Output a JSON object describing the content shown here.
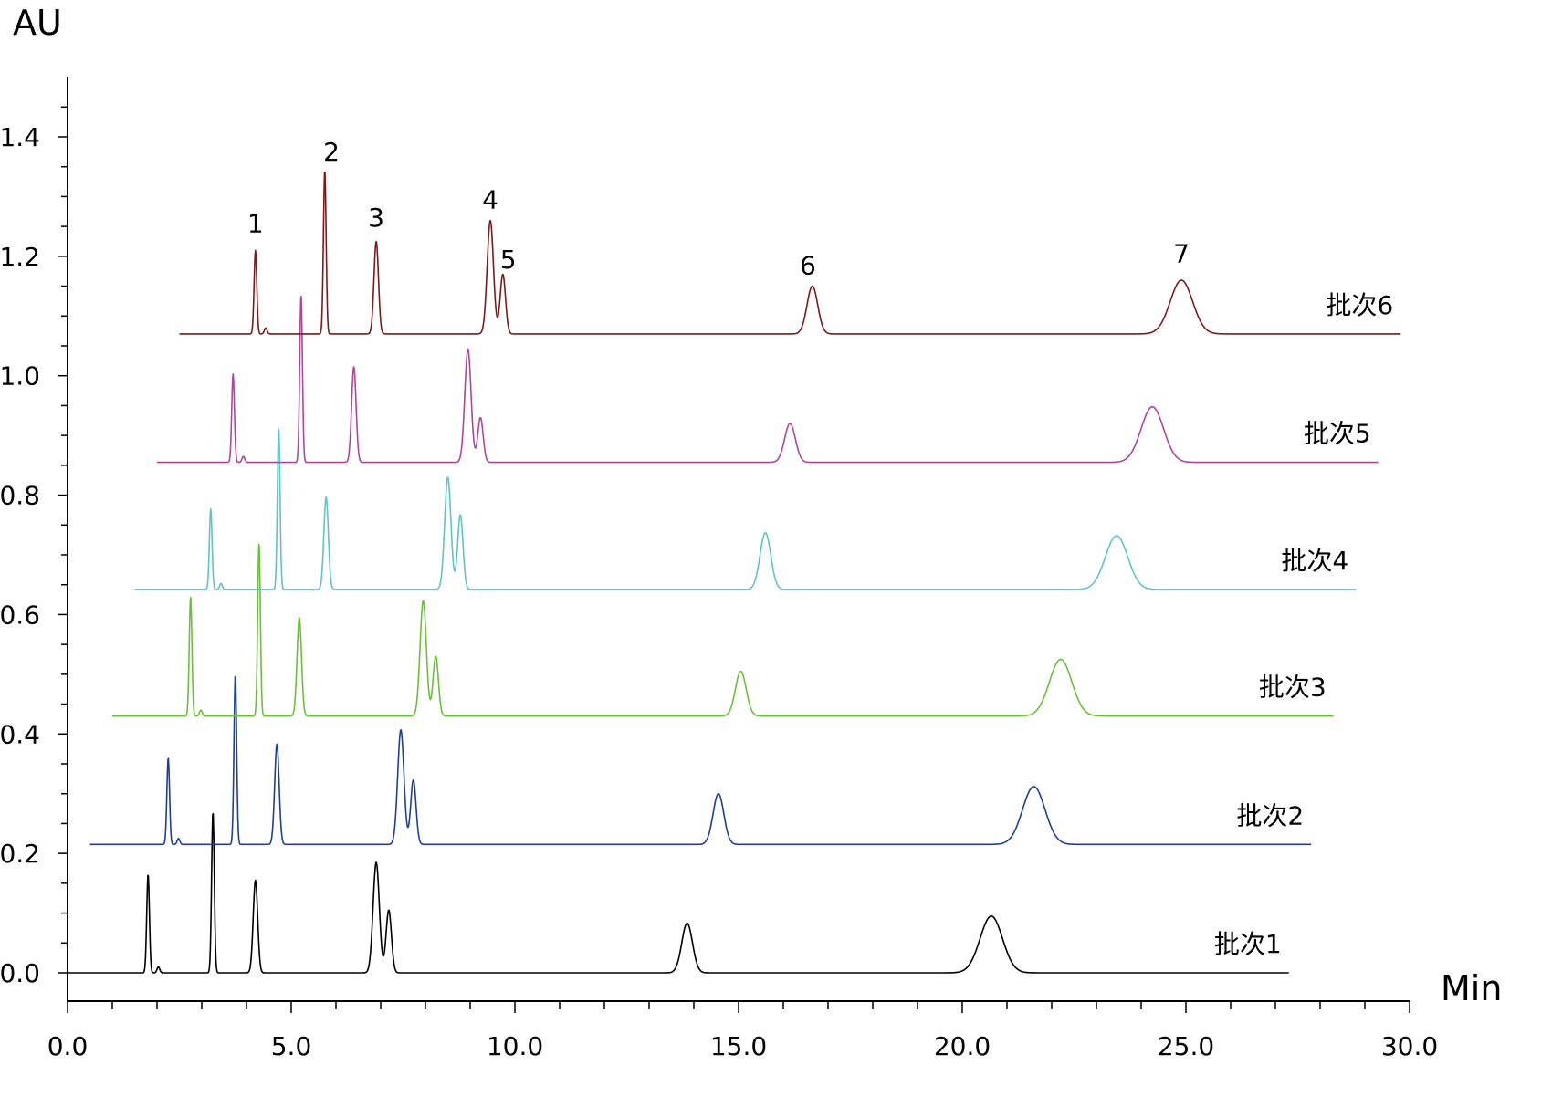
{
  "chart_data": {
    "type": "line",
    "ylabel": "AU",
    "xlabel": "Min",
    "xlim": [
      0,
      30
    ],
    "ylim": [
      -0.05,
      1.5
    ],
    "x_ticks": [
      "0.0",
      "5.0",
      "10.0",
      "15.0",
      "20.0",
      "25.0",
      "30.0"
    ],
    "y_ticks": [
      "0.0",
      "0.2",
      "0.4",
      "0.6",
      "0.8",
      "1.0",
      "1.2",
      "1.4"
    ],
    "grid": false,
    "peak_labels": [
      {
        "text": "1",
        "x": 4.2,
        "y": 1.24
      },
      {
        "text": "2",
        "x": 5.9,
        "y": 1.36
      },
      {
        "text": "3",
        "x": 6.9,
        "y": 1.25
      },
      {
        "text": "4",
        "x": 9.45,
        "y": 1.28
      },
      {
        "text": "5",
        "x": 9.85,
        "y": 1.18
      },
      {
        "text": "6",
        "x": 16.55,
        "y": 1.17
      },
      {
        "text": "7",
        "x": 24.9,
        "y": 1.19
      }
    ],
    "series": [
      {
        "name": "批次1",
        "color": "#000000",
        "baseline": 0.0,
        "x_start": 0.0,
        "x_end": 27.3,
        "peaks": [
          {
            "x": 1.8,
            "h": 0.165,
            "w": 0.03
          },
          {
            "x": 2.03,
            "h": 0.01,
            "w": 0.03
          },
          {
            "x": 3.25,
            "h": 0.27,
            "w": 0.03
          },
          {
            "x": 4.2,
            "h": 0.155,
            "w": 0.05
          },
          {
            "x": 6.9,
            "h": 0.185,
            "w": 0.07
          },
          {
            "x": 7.18,
            "h": 0.105,
            "w": 0.06
          },
          {
            "x": 13.85,
            "h": 0.083,
            "w": 0.12
          },
          {
            "x": 20.65,
            "h": 0.095,
            "w": 0.25
          }
        ]
      },
      {
        "name": "批次2",
        "color": "#1f3f8f",
        "baseline": 0.215,
        "x_start": 0.5,
        "x_end": 27.8,
        "peaks": [
          {
            "x": 2.25,
            "h": 0.145,
            "w": 0.03
          },
          {
            "x": 2.48,
            "h": 0.01,
            "w": 0.03
          },
          {
            "x": 3.75,
            "h": 0.285,
            "w": 0.03
          },
          {
            "x": 4.68,
            "h": 0.168,
            "w": 0.05
          },
          {
            "x": 7.45,
            "h": 0.192,
            "w": 0.07
          },
          {
            "x": 7.73,
            "h": 0.108,
            "w": 0.06
          },
          {
            "x": 14.55,
            "h": 0.085,
            "w": 0.12
          },
          {
            "x": 21.6,
            "h": 0.097,
            "w": 0.25
          }
        ]
      },
      {
        "name": "批次3",
        "color": "#6cbf3c",
        "baseline": 0.43,
        "x_start": 1.0,
        "x_end": 28.3,
        "peaks": [
          {
            "x": 2.75,
            "h": 0.2,
            "w": 0.03
          },
          {
            "x": 2.98,
            "h": 0.01,
            "w": 0.03
          },
          {
            "x": 4.28,
            "h": 0.29,
            "w": 0.03
          },
          {
            "x": 5.18,
            "h": 0.165,
            "w": 0.05
          },
          {
            "x": 7.95,
            "h": 0.193,
            "w": 0.07
          },
          {
            "x": 8.23,
            "h": 0.1,
            "w": 0.06
          },
          {
            "x": 15.05,
            "h": 0.075,
            "w": 0.12
          },
          {
            "x": 22.2,
            "h": 0.095,
            "w": 0.25
          }
        ]
      },
      {
        "name": "批次4",
        "color": "#5fc4c8",
        "baseline": 0.642,
        "x_start": 1.5,
        "x_end": 28.8,
        "peaks": [
          {
            "x": 3.2,
            "h": 0.135,
            "w": 0.03
          },
          {
            "x": 3.43,
            "h": 0.01,
            "w": 0.03
          },
          {
            "x": 4.72,
            "h": 0.27,
            "w": 0.03
          },
          {
            "x": 5.78,
            "h": 0.155,
            "w": 0.05
          },
          {
            "x": 8.5,
            "h": 0.188,
            "w": 0.07
          },
          {
            "x": 8.78,
            "h": 0.125,
            "w": 0.06
          },
          {
            "x": 15.6,
            "h": 0.095,
            "w": 0.12
          },
          {
            "x": 23.45,
            "h": 0.09,
            "w": 0.25
          }
        ]
      },
      {
        "name": "批次5",
        "color": "#b0459c",
        "baseline": 0.855,
        "x_start": 2.0,
        "x_end": 29.3,
        "peaks": [
          {
            "x": 3.7,
            "h": 0.148,
            "w": 0.03
          },
          {
            "x": 3.93,
            "h": 0.01,
            "w": 0.03
          },
          {
            "x": 5.22,
            "h": 0.28,
            "w": 0.03
          },
          {
            "x": 6.4,
            "h": 0.16,
            "w": 0.05
          },
          {
            "x": 8.95,
            "h": 0.19,
            "w": 0.07
          },
          {
            "x": 9.23,
            "h": 0.075,
            "w": 0.06
          },
          {
            "x": 16.15,
            "h": 0.065,
            "w": 0.12
          },
          {
            "x": 24.25,
            "h": 0.093,
            "w": 0.25
          }
        ]
      },
      {
        "name": "批次6",
        "color": "#7b1a1a",
        "baseline": 1.07,
        "x_start": 2.5,
        "x_end": 29.8,
        "peaks": [
          {
            "x": 4.2,
            "h": 0.14,
            "w": 0.03
          },
          {
            "x": 4.43,
            "h": 0.01,
            "w": 0.03
          },
          {
            "x": 5.75,
            "h": 0.275,
            "w": 0.03
          },
          {
            "x": 6.9,
            "h": 0.155,
            "w": 0.05
          },
          {
            "x": 9.45,
            "h": 0.19,
            "w": 0.07
          },
          {
            "x": 9.73,
            "h": 0.1,
            "w": 0.06
          },
          {
            "x": 16.65,
            "h": 0.08,
            "w": 0.12
          },
          {
            "x": 24.9,
            "h": 0.09,
            "w": 0.25
          }
        ]
      }
    ]
  }
}
